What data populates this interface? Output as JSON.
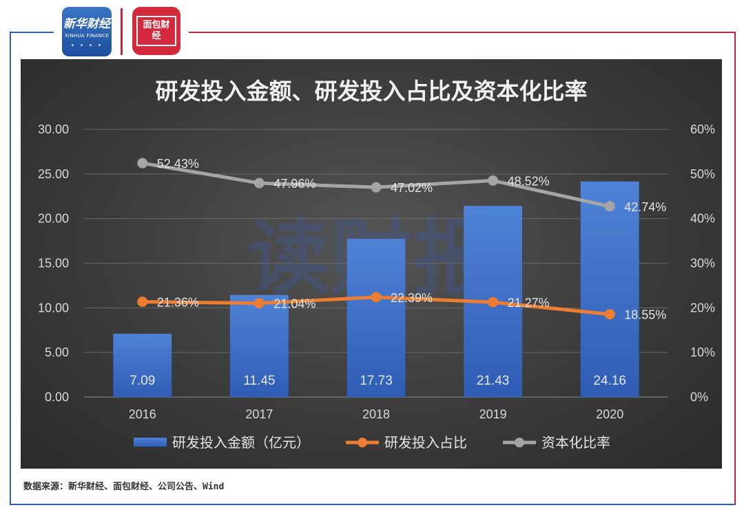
{
  "logos": {
    "xinhua_text": "新华财经",
    "xinhua_sub": "XINHUA FINANCE",
    "mianbao_text": "面包财经"
  },
  "watermark": "读财报",
  "source_text": "数据来源：新华财经、面包财经、公司公告、Wind",
  "colors": {
    "bar": "#4472c4",
    "line_share": "#ed7d31",
    "line_cap": "#a5a5a5",
    "panel": "#404040",
    "frame_left": "#2e5fa8",
    "frame_right": "#c5213b"
  },
  "chart_data": {
    "type": "bar",
    "title": "研发投入金额、研发投入占比及资本化比率",
    "categories": [
      "2016",
      "2017",
      "2018",
      "2019",
      "2020"
    ],
    "series": [
      {
        "name": "研发投入金额（亿元）",
        "kind": "bar",
        "axis": "left",
        "values": [
          7.09,
          11.45,
          17.73,
          21.43,
          24.16
        ],
        "labels": [
          "7.09",
          "11.45",
          "17.73",
          "21.43",
          "24.16"
        ]
      },
      {
        "name": "研发投入占比",
        "kind": "line",
        "axis": "right",
        "values": [
          21.36,
          21.04,
          22.39,
          21.27,
          18.55
        ],
        "labels": [
          "21.36%",
          "21.04%",
          "22.39%",
          "21.27%",
          "18.55%"
        ]
      },
      {
        "name": "资本化比率",
        "kind": "line",
        "axis": "right",
        "values": [
          52.43,
          47.96,
          47.02,
          48.52,
          42.74
        ],
        "labels": [
          "52.43%",
          "47.96%",
          "47.02%",
          "48.52%",
          "42.74%"
        ]
      }
    ],
    "ylim_left": [
      0,
      30
    ],
    "ylim_right": [
      0,
      60
    ],
    "yticks_left": [
      "0.00",
      "5.00",
      "10.00",
      "15.00",
      "20.00",
      "25.00",
      "30.00"
    ],
    "yticks_right": [
      "0%",
      "10%",
      "20%",
      "30%",
      "40%",
      "50%",
      "60%"
    ],
    "grid": true,
    "legend_position": "bottom"
  }
}
